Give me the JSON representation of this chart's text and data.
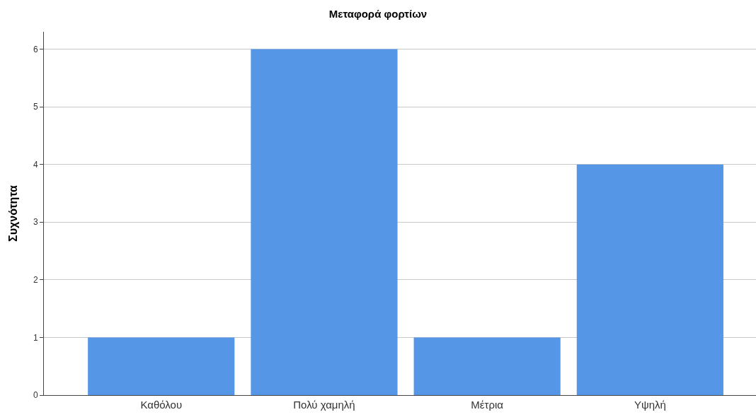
{
  "chart_data": {
    "type": "bar",
    "title": "Μεταφορά φορτίων",
    "ylabel": "Συχνότητα",
    "categories": [
      "Καθόλου",
      "Πολύ χαμηλή",
      "Μέτρια",
      "Υψηλή"
    ],
    "values": [
      1,
      6,
      1,
      4
    ],
    "color": "#5596e6",
    "ylim": [
      0,
      6.3
    ],
    "yticks": [
      0,
      1,
      2,
      3,
      4,
      5,
      6
    ],
    "grid": "y",
    "legend": false
  }
}
